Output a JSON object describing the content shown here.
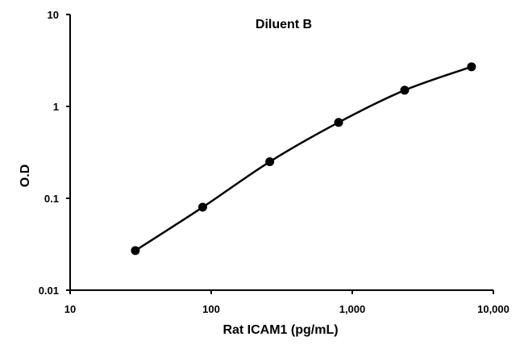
{
  "chart_data": {
    "type": "line",
    "title": "Diluent B",
    "xlabel": "Rat ICAM1 (pg/mL)",
    "ylabel": "O.D",
    "x_scale": "log",
    "y_scale": "log",
    "xlim": [
      10,
      10000
    ],
    "ylim": [
      0.01,
      10
    ],
    "x_ticks": [
      {
        "value": 10,
        "label": "10"
      },
      {
        "value": 100,
        "label": "100"
      },
      {
        "value": 1000,
        "label": "1,000"
      },
      {
        "value": 10000,
        "label": "10,000"
      }
    ],
    "y_ticks": [
      {
        "value": 0.01,
        "label": "0.01"
      },
      {
        "value": 0.1,
        "label": "0.1"
      },
      {
        "value": 1,
        "label": "1"
      },
      {
        "value": 10,
        "label": "10"
      }
    ],
    "grid": false,
    "legend": "none",
    "series": [
      {
        "x": [
          29,
          87,
          260,
          800,
          2350,
          7000
        ],
        "y": [
          0.027,
          0.08,
          0.25,
          0.67,
          1.5,
          2.7
        ]
      }
    ],
    "colors": {
      "line": "#000000",
      "marker": "#000000",
      "axis": "#000000"
    }
  }
}
